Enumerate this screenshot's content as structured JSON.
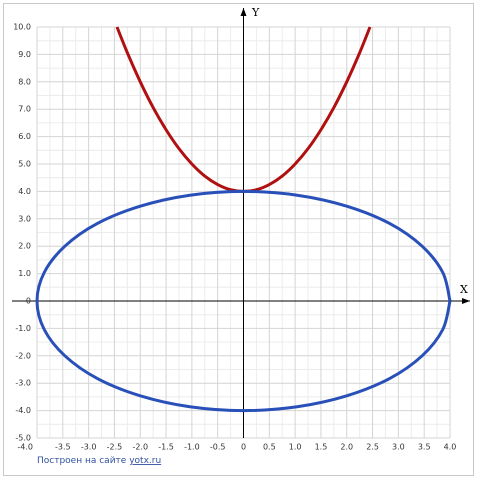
{
  "chart_data": {
    "type": "line",
    "xlabel": "X",
    "ylabel": "Y",
    "footer_text": "Построен на сайте",
    "footer_link": "yotx.ru",
    "xlim": [
      -4,
      4
    ],
    "ylim": [
      -5,
      10
    ],
    "grid": true,
    "xticks": [
      {
        "value": -4,
        "label": "-4.0"
      },
      {
        "value": -3.5,
        "label": "-3.5"
      },
      {
        "value": -3,
        "label": "-3.0"
      },
      {
        "value": -2.5,
        "label": "-2.5"
      },
      {
        "value": -2,
        "label": "-2.0"
      },
      {
        "value": -1.5,
        "label": "-1.5"
      },
      {
        "value": -1,
        "label": "-1.0"
      },
      {
        "value": -0.5,
        "label": "-0.5"
      },
      0,
      {
        "value": 0.5,
        "label": "0.5"
      },
      {
        "value": 1,
        "label": "1.0"
      },
      {
        "value": 1.5,
        "label": "1.5"
      },
      {
        "value": 2,
        "label": "2.0"
      },
      {
        "value": 2.5,
        "label": "2.5"
      },
      {
        "value": 3,
        "label": "3.0"
      },
      {
        "value": 3.5,
        "label": "3.5"
      },
      {
        "value": 4,
        "label": "4.0"
      }
    ],
    "yticks": [
      {
        "value": -5,
        "label": "-5.0"
      },
      {
        "value": -4,
        "label": "-4.0"
      },
      {
        "value": -3,
        "label": "-3.0"
      },
      {
        "value": -2,
        "label": "-2.0"
      },
      {
        "value": -1,
        "label": "-1.0"
      },
      0,
      {
        "value": 1,
        "label": "1.0"
      },
      {
        "value": 2,
        "label": "2.0"
      },
      {
        "value": 3,
        "label": "3.0"
      },
      {
        "value": 4,
        "label": "4.0"
      },
      {
        "value": 5,
        "label": "5.0"
      },
      {
        "value": 6,
        "label": "6.0"
      },
      {
        "value": 7,
        "label": "7.0"
      },
      {
        "value": 8,
        "label": "8.0"
      },
      {
        "value": 9,
        "label": "9.0"
      },
      {
        "value": 10,
        "label": "10.0"
      }
    ],
    "series": [
      {
        "color": "#b01010",
        "x": [
          -2.45,
          -2.25,
          -2,
          -1.75,
          -1.5,
          -1.25,
          -1,
          -0.75,
          -0.5,
          -0.25,
          0,
          0.25,
          0.5,
          0.75,
          1,
          1.25,
          1.5,
          1.75,
          2,
          2.25,
          2.45
        ],
        "values": [
          10,
          9.06,
          8,
          7.06,
          6.25,
          5.56,
          5,
          4.56,
          4.25,
          4.06,
          4,
          4.06,
          4.25,
          4.56,
          5,
          5.56,
          6.25,
          7.06,
          8,
          9.06,
          10
        ]
      },
      {
        "color": "#2850b8",
        "x": [
          4,
          3.86,
          3.46,
          2.83,
          2,
          1.04,
          0,
          -1.04,
          -2,
          -2.83,
          -3.46,
          -3.86,
          -4,
          -3.86,
          -3.46,
          -2.83,
          -2,
          -1.04,
          0,
          1.04,
          2,
          2.83,
          3.46,
          3.86,
          4
        ],
        "values": [
          0,
          1.04,
          2,
          2.83,
          3.46,
          3.86,
          4,
          3.86,
          3.46,
          2.83,
          2,
          1.04,
          0,
          -1.04,
          -2,
          -2.83,
          -3.46,
          -3.86,
          -4,
          -3.86,
          -3.46,
          -2.83,
          -2,
          -1.04,
          0
        ]
      }
    ]
  }
}
